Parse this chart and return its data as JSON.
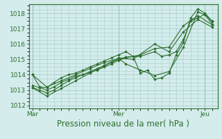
{
  "background_color": "#d4ecec",
  "grid_color": "#a8cccc",
  "line_color": "#2d6e2d",
  "marker_color": "#2d6e2d",
  "xlabel": "Pression niveau de la mer( hPa )",
  "xlabel_fontsize": 8.5,
  "tick_fontsize": 6.5,
  "xtick_labels": [
    "Mar",
    "Mer",
    "Jeu"
  ],
  "xtick_positions": [
    0,
    48,
    96
  ],
  "ylim": [
    1011.8,
    1018.6
  ],
  "yticks": [
    1012,
    1013,
    1014,
    1015,
    1016,
    1017,
    1018
  ],
  "xlim": [
    -2,
    103
  ],
  "series": [
    [
      0,
      1014.0,
      4,
      1013.2,
      8,
      1013.15,
      12,
      1013.5,
      16,
      1013.8,
      20,
      1014.0,
      24,
      1014.1,
      28,
      1014.3,
      32,
      1014.5,
      36,
      1014.7,
      40,
      1014.9,
      44,
      1015.1,
      48,
      1015.3,
      52,
      1015.5,
      56,
      1015.2,
      60,
      1014.1,
      64,
      1014.3,
      68,
      1013.7,
      72,
      1013.8,
      76,
      1014.1,
      80,
      1015.3,
      84,
      1016.1,
      88,
      1017.7,
      92,
      1018.3,
      96,
      1018.0,
      100,
      1017.5
    ],
    [
      0,
      1014.0,
      8,
      1013.2,
      16,
      1013.6,
      24,
      1014.0,
      32,
      1014.4,
      40,
      1014.8,
      48,
      1015.05,
      52,
      1014.7,
      60,
      1014.3,
      68,
      1013.95,
      76,
      1014.2,
      84,
      1015.8,
      92,
      1018.1,
      96,
      1017.9,
      100,
      1017.3
    ],
    [
      0,
      1013.3,
      4,
      1013.15,
      8,
      1013.0,
      12,
      1013.2,
      16,
      1013.5,
      20,
      1013.7,
      24,
      1013.9,
      28,
      1014.0,
      32,
      1014.2,
      36,
      1014.4,
      40,
      1014.6,
      44,
      1014.8,
      48,
      1015.0,
      52,
      1015.15,
      60,
      1015.2,
      68,
      1015.5,
      72,
      1015.2,
      76,
      1015.3,
      80,
      1015.5,
      84,
      1016.3,
      88,
      1017.5,
      92,
      1017.7,
      96,
      1017.95,
      100,
      1017.45
    ],
    [
      0,
      1013.15,
      8,
      1012.6,
      16,
      1013.1,
      24,
      1013.6,
      32,
      1014.1,
      40,
      1014.6,
      48,
      1015.1,
      56,
      1015.0,
      68,
      1016.0,
      76,
      1015.5,
      84,
      1016.8,
      92,
      1017.6,
      100,
      1017.1
    ],
    [
      0,
      1013.15,
      4,
      1013.0,
      8,
      1012.8,
      12,
      1013.0,
      16,
      1013.3,
      20,
      1013.6,
      24,
      1013.8,
      28,
      1014.0,
      32,
      1014.15,
      36,
      1014.3,
      40,
      1014.5,
      44,
      1014.7,
      48,
      1014.95,
      52,
      1015.1,
      60,
      1015.3,
      68,
      1015.7,
      76,
      1015.8,
      84,
      1017.2,
      92,
      1017.85,
      100,
      1017.25
    ]
  ]
}
